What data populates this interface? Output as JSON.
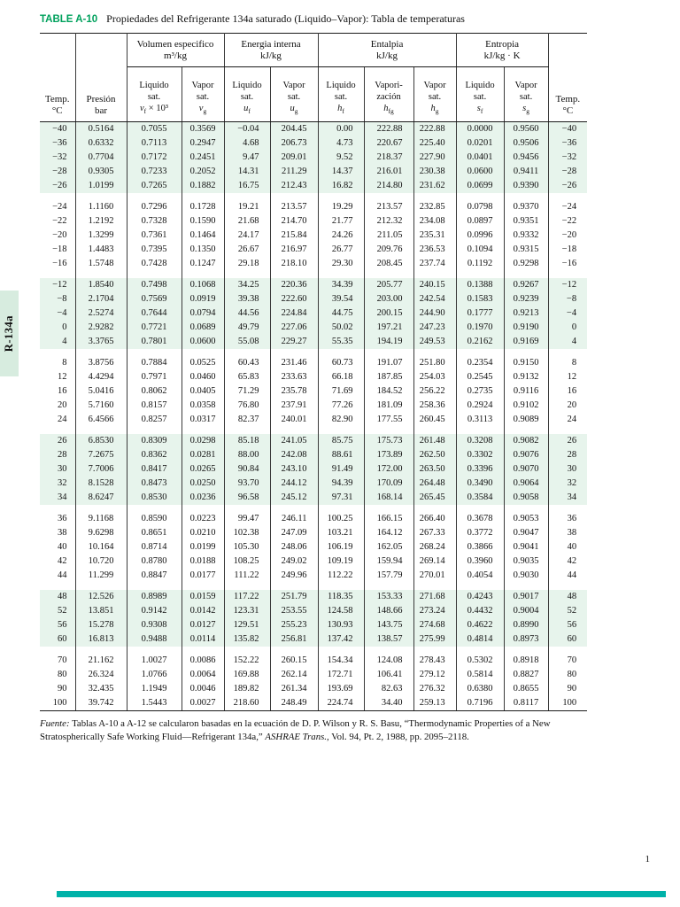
{
  "colors": {
    "accent_green": "#00a15d",
    "teal_bar": "#00b2a9",
    "band_green": "#e7f4ec",
    "tab_green": "#d7ecdf"
  },
  "page": {
    "title_label": "TABLE A-10",
    "title_text": "Propiedades del Refrigerante 134a saturado (Liquido–Vapor): Tabla de temperaturas",
    "side_tab": "R-134a",
    "page_number": "1",
    "footer": {
      "label": "Fuente:",
      "part1": " Tablas A-10 a A-12 se calcularon basadas en la ecuación de D. P. Wilson y R. S. Basu, “Thermodynamic Properties of a New Stratospherically Safe Working Fluid—Refrigerant 134a,” ",
      "journal": "ASHRAE Trans.",
      "part2": ", Vol. 94, Pt. 2, 1988, pp. 2095–2118."
    }
  },
  "table": {
    "corners": [
      {
        "l1": "Temp.",
        "l2": "°C"
      },
      {
        "l1": "Presión",
        "l2": "bar"
      },
      {
        "l1": "Temp.",
        "l2": "°C"
      }
    ],
    "group_headers": [
      {
        "title": "Volumen especifico",
        "unit": "m³/kg"
      },
      {
        "title": "Energia interna",
        "unit": "kJ/kg"
      },
      {
        "title": "Entalpia",
        "unit": "kJ/kg"
      },
      {
        "title": "Entropia",
        "unit": "kJ/kg · K"
      }
    ],
    "sub_headers": [
      {
        "l1": "Liquido",
        "l2": "sat.",
        "sym": "v",
        "sub": "f",
        "extra": "× 10³"
      },
      {
        "l1": "Vapor",
        "l2": "sat.",
        "sym": "v",
        "sub": "g",
        "extra": ""
      },
      {
        "l1": "Liquido",
        "l2": "sat.",
        "sym": "u",
        "sub": "f",
        "extra": ""
      },
      {
        "l1": "Vapor",
        "l2": "sat.",
        "sym": "u",
        "sub": "g",
        "extra": ""
      },
      {
        "l1": "Liquido",
        "l2": "sat.",
        "sym": "h",
        "sub": "f",
        "extra": ""
      },
      {
        "l1": "Vapori-",
        "l2": "zación",
        "sym": "h",
        "sub": "fg",
        "extra": ""
      },
      {
        "l1": "Vapor",
        "l2": "sat.",
        "sym": "h",
        "sub": "g",
        "extra": ""
      },
      {
        "l1": "Liquido",
        "l2": "sat.",
        "sym": "s",
        "sub": "f",
        "extra": ""
      },
      {
        "l1": "Vapor",
        "l2": "sat.",
        "sym": "s",
        "sub": "g",
        "extra": ""
      }
    ],
    "groups": [
      {
        "shaded": true,
        "rows": [
          [
            "−40",
            "0.5164",
            "0.7055",
            "0.3569",
            "−0.04",
            "204.45",
            "0.00",
            "222.88",
            "222.88",
            "0.0000",
            "0.9560",
            "−40"
          ],
          [
            "−36",
            "0.6332",
            "0.7113",
            "0.2947",
            "4.68",
            "206.73",
            "4.73",
            "220.67",
            "225.40",
            "0.0201",
            "0.9506",
            "−36"
          ],
          [
            "−32",
            "0.7704",
            "0.7172",
            "0.2451",
            "9.47",
            "209.01",
            "9.52",
            "218.37",
            "227.90",
            "0.0401",
            "0.9456",
            "−32"
          ],
          [
            "−28",
            "0.9305",
            "0.7233",
            "0.2052",
            "14.31",
            "211.29",
            "14.37",
            "216.01",
            "230.38",
            "0.0600",
            "0.9411",
            "−28"
          ],
          [
            "−26",
            "1.0199",
            "0.7265",
            "0.1882",
            "16.75",
            "212.43",
            "16.82",
            "214.80",
            "231.62",
            "0.0699",
            "0.9390",
            "−26"
          ]
        ]
      },
      {
        "shaded": false,
        "rows": [
          [
            "−24",
            "1.1160",
            "0.7296",
            "0.1728",
            "19.21",
            "213.57",
            "19.29",
            "213.57",
            "232.85",
            "0.0798",
            "0.9370",
            "−24"
          ],
          [
            "−22",
            "1.2192",
            "0.7328",
            "0.1590",
            "21.68",
            "214.70",
            "21.77",
            "212.32",
            "234.08",
            "0.0897",
            "0.9351",
            "−22"
          ],
          [
            "−20",
            "1.3299",
            "0.7361",
            "0.1464",
            "24.17",
            "215.84",
            "24.26",
            "211.05",
            "235.31",
            "0.0996",
            "0.9332",
            "−20"
          ],
          [
            "−18",
            "1.4483",
            "0.7395",
            "0.1350",
            "26.67",
            "216.97",
            "26.77",
            "209.76",
            "236.53",
            "0.1094",
            "0.9315",
            "−18"
          ],
          [
            "−16",
            "1.5748",
            "0.7428",
            "0.1247",
            "29.18",
            "218.10",
            "29.30",
            "208.45",
            "237.74",
            "0.1192",
            "0.9298",
            "−16"
          ]
        ]
      },
      {
        "shaded": true,
        "rows": [
          [
            "−12",
            "1.8540",
            "0.7498",
            "0.1068",
            "34.25",
            "220.36",
            "34.39",
            "205.77",
            "240.15",
            "0.1388",
            "0.9267",
            "−12"
          ],
          [
            "−8",
            "2.1704",
            "0.7569",
            "0.0919",
            "39.38",
            "222.60",
            "39.54",
            "203.00",
            "242.54",
            "0.1583",
            "0.9239",
            "−8"
          ],
          [
            "−4",
            "2.5274",
            "0.7644",
            "0.0794",
            "44.56",
            "224.84",
            "44.75",
            "200.15",
            "244.90",
            "0.1777",
            "0.9213",
            "−4"
          ],
          [
            "0",
            "2.9282",
            "0.7721",
            "0.0689",
            "49.79",
            "227.06",
            "50.02",
            "197.21",
            "247.23",
            "0.1970",
            "0.9190",
            "0"
          ],
          [
            "4",
            "3.3765",
            "0.7801",
            "0.0600",
            "55.08",
            "229.27",
            "55.35",
            "194.19",
            "249.53",
            "0.2162",
            "0.9169",
            "4"
          ]
        ]
      },
      {
        "shaded": false,
        "rows": [
          [
            "8",
            "3.8756",
            "0.7884",
            "0.0525",
            "60.43",
            "231.46",
            "60.73",
            "191.07",
            "251.80",
            "0.2354",
            "0.9150",
            "8"
          ],
          [
            "12",
            "4.4294",
            "0.7971",
            "0.0460",
            "65.83",
            "233.63",
            "66.18",
            "187.85",
            "254.03",
            "0.2545",
            "0.9132",
            "12"
          ],
          [
            "16",
            "5.0416",
            "0.8062",
            "0.0405",
            "71.29",
            "235.78",
            "71.69",
            "184.52",
            "256.22",
            "0.2735",
            "0.9116",
            "16"
          ],
          [
            "20",
            "5.7160",
            "0.8157",
            "0.0358",
            "76.80",
            "237.91",
            "77.26",
            "181.09",
            "258.36",
            "0.2924",
            "0.9102",
            "20"
          ],
          [
            "24",
            "6.4566",
            "0.8257",
            "0.0317",
            "82.37",
            "240.01",
            "82.90",
            "177.55",
            "260.45",
            "0.3113",
            "0.9089",
            "24"
          ]
        ]
      },
      {
        "shaded": true,
        "rows": [
          [
            "26",
            "6.8530",
            "0.8309",
            "0.0298",
            "85.18",
            "241.05",
            "85.75",
            "175.73",
            "261.48",
            "0.3208",
            "0.9082",
            "26"
          ],
          [
            "28",
            "7.2675",
            "0.8362",
            "0.0281",
            "88.00",
            "242.08",
            "88.61",
            "173.89",
            "262.50",
            "0.3302",
            "0.9076",
            "28"
          ],
          [
            "30",
            "7.7006",
            "0.8417",
            "0.0265",
            "90.84",
            "243.10",
            "91.49",
            "172.00",
            "263.50",
            "0.3396",
            "0.9070",
            "30"
          ],
          [
            "32",
            "8.1528",
            "0.8473",
            "0.0250",
            "93.70",
            "244.12",
            "94.39",
            "170.09",
            "264.48",
            "0.3490",
            "0.9064",
            "32"
          ],
          [
            "34",
            "8.6247",
            "0.8530",
            "0.0236",
            "96.58",
            "245.12",
            "97.31",
            "168.14",
            "265.45",
            "0.3584",
            "0.9058",
            "34"
          ]
        ]
      },
      {
        "shaded": false,
        "rows": [
          [
            "36",
            "9.1168",
            "0.8590",
            "0.0223",
            "99.47",
            "246.11",
            "100.25",
            "166.15",
            "266.40",
            "0.3678",
            "0.9053",
            "36"
          ],
          [
            "38",
            "9.6298",
            "0.8651",
            "0.0210",
            "102.38",
            "247.09",
            "103.21",
            "164.12",
            "267.33",
            "0.3772",
            "0.9047",
            "38"
          ],
          [
            "40",
            "10.164",
            "0.8714",
            "0.0199",
            "105.30",
            "248.06",
            "106.19",
            "162.05",
            "268.24",
            "0.3866",
            "0.9041",
            "40"
          ],
          [
            "42",
            "10.720",
            "0.8780",
            "0.0188",
            "108.25",
            "249.02",
            "109.19",
            "159.94",
            "269.14",
            "0.3960",
            "0.9035",
            "42"
          ],
          [
            "44",
            "11.299",
            "0.8847",
            "0.0177",
            "111.22",
            "249.96",
            "112.22",
            "157.79",
            "270.01",
            "0.4054",
            "0.9030",
            "44"
          ]
        ]
      },
      {
        "shaded": true,
        "rows": [
          [
            "48",
            "12.526",
            "0.8989",
            "0.0159",
            "117.22",
            "251.79",
            "118.35",
            "153.33",
            "271.68",
            "0.4243",
            "0.9017",
            "48"
          ],
          [
            "52",
            "13.851",
            "0.9142",
            "0.0142",
            "123.31",
            "253.55",
            "124.58",
            "148.66",
            "273.24",
            "0.4432",
            "0.9004",
            "52"
          ],
          [
            "56",
            "15.278",
            "0.9308",
            "0.0127",
            "129.51",
            "255.23",
            "130.93",
            "143.75",
            "274.68",
            "0.4622",
            "0.8990",
            "56"
          ],
          [
            "60",
            "16.813",
            "0.9488",
            "0.0114",
            "135.82",
            "256.81",
            "137.42",
            "138.57",
            "275.99",
            "0.4814",
            "0.8973",
            "60"
          ]
        ]
      },
      {
        "shaded": false,
        "rows": [
          [
            "70",
            "21.162",
            "1.0027",
            "0.0086",
            "152.22",
            "260.15",
            "154.34",
            "124.08",
            "278.43",
            "0.5302",
            "0.8918",
            "70"
          ],
          [
            "80",
            "26.324",
            "1.0766",
            "0.0064",
            "169.88",
            "262.14",
            "172.71",
            "106.41",
            "279.12",
            "0.5814",
            "0.8827",
            "80"
          ],
          [
            "90",
            "32.435",
            "1.1949",
            "0.0046",
            "189.82",
            "261.34",
            "193.69",
            "82.63",
            "276.32",
            "0.6380",
            "0.8655",
            "90"
          ],
          [
            "100",
            "39.742",
            "1.5443",
            "0.0027",
            "218.60",
            "248.49",
            "224.74",
            "34.40",
            "259.13",
            "0.7196",
            "0.8117",
            "100"
          ]
        ]
      }
    ]
  }
}
